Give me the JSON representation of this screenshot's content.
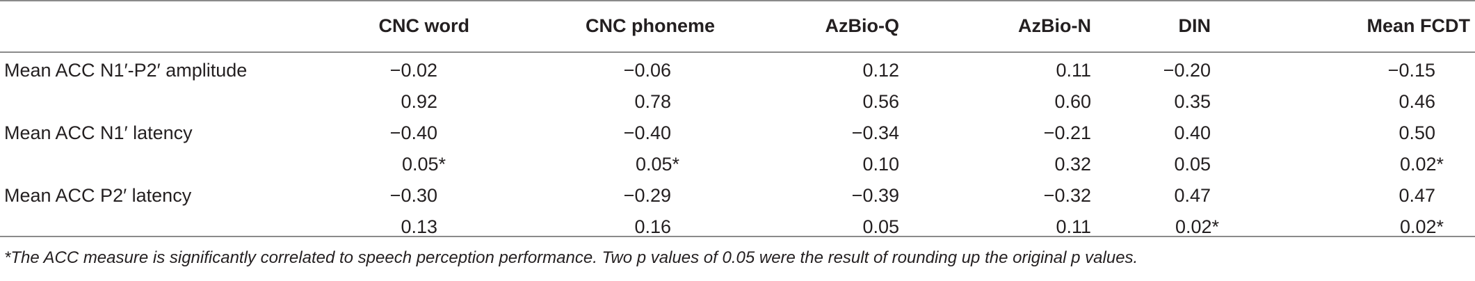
{
  "header": {
    "columns": [
      "",
      "CNC word",
      "CNC phoneme",
      "AzBio-Q",
      "AzBio-N",
      "DIN",
      "Mean FCDT"
    ]
  },
  "rows": [
    {
      "label": "Mean ACC N1′-P2′ amplitude",
      "values": [
        "−0.02",
        "−0.06",
        "0.12",
        "0.11",
        "−0.20",
        "−0.15"
      ]
    },
    {
      "label": "",
      "values": [
        "0.92",
        "0.78",
        "0.56",
        "0.60",
        "0.35",
        "0.46"
      ]
    },
    {
      "label": "Mean ACC N1′ latency",
      "values": [
        "−0.40",
        "−0.40",
        "−0.34",
        "−0.21",
        "0.40",
        "0.50"
      ]
    },
    {
      "label": "",
      "values": [
        "0.05*",
        "0.05*",
        "0.10",
        "0.32",
        "0.05",
        "0.02*"
      ]
    },
    {
      "label": "Mean ACC P2′ latency",
      "values": [
        "−0.30",
        "−0.29",
        "−0.39",
        "−0.32",
        "0.47",
        "0.47"
      ]
    },
    {
      "label": "",
      "values": [
        "0.13",
        "0.16",
        "0.05",
        "0.11",
        "0.02*",
        "0.02*"
      ]
    }
  ],
  "footnote": "*The ACC measure is significantly correlated to speech perception performance. Two p values of 0.05 were the result of rounding up the original p values."
}
